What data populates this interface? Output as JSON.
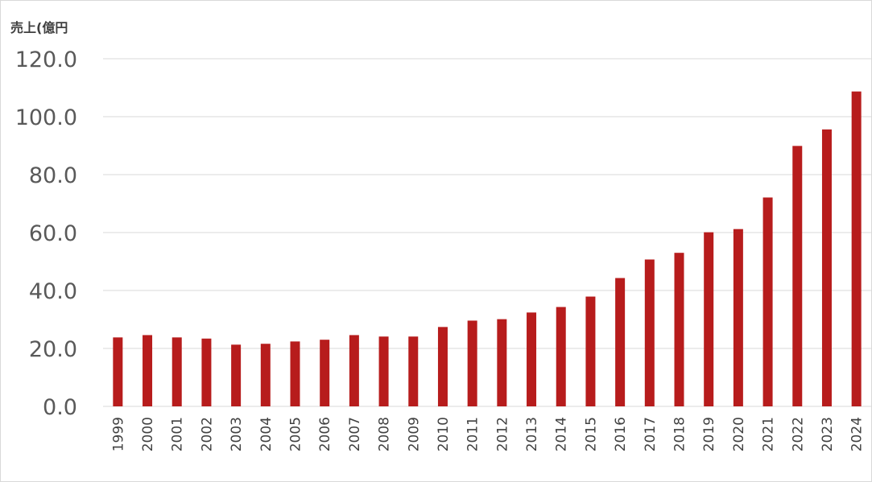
{
  "chart_data": {
    "type": "bar",
    "ylabel": "売上(億円",
    "xlabel": "",
    "ylim": [
      0,
      120
    ],
    "yticks": [
      "0.0",
      "20.0",
      "40.0",
      "60.0",
      "80.0",
      "100.0",
      "120.0"
    ],
    "grid": true,
    "bar_color": "#b71c1c",
    "categories": [
      "1999",
      "2000",
      "2001",
      "2002",
      "2003",
      "2004",
      "2005",
      "2006",
      "2007",
      "2008",
      "2009",
      "2010",
      "2011",
      "2012",
      "2013",
      "2014",
      "2015",
      "2016",
      "2017",
      "2018",
      "2019",
      "2020",
      "2021",
      "2022",
      "2023",
      "2024"
    ],
    "values": [
      23.8,
      24.6,
      23.8,
      23.4,
      21.3,
      21.6,
      22.4,
      23.0,
      24.6,
      24.1,
      24.1,
      27.4,
      29.6,
      30.1,
      32.4,
      34.3,
      37.9,
      44.3,
      50.7,
      53.0,
      60.1,
      61.2,
      72.1,
      89.9,
      95.6,
      108.7
    ]
  }
}
